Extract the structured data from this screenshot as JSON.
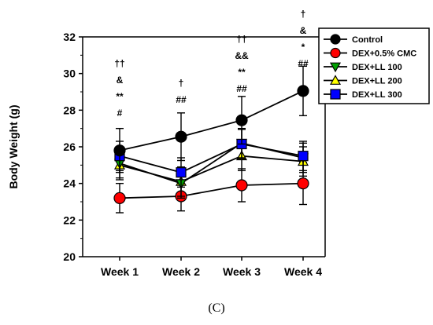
{
  "panel_label": "(C)",
  "chart_data": {
    "type": "line",
    "title": "",
    "xlabel": "",
    "ylabel": "Body Weight (g)",
    "categories": [
      "Week 1",
      "Week 2",
      "Week 3",
      "Week 4"
    ],
    "ylim": [
      20,
      32
    ],
    "yticks": [
      20,
      22,
      24,
      26,
      28,
      30,
      32
    ],
    "grid": false,
    "legend_position": "top-right",
    "series": [
      {
        "name": "Control",
        "color": "#000000",
        "marker": "circle",
        "values": [
          25.8,
          26.55,
          27.45,
          29.05
        ],
        "errors": [
          1.2,
          1.3,
          1.3,
          1.35
        ]
      },
      {
        "name": "DEX+0.5% CMC",
        "color": "#ff0000",
        "marker": "circle",
        "values": [
          23.2,
          23.3,
          23.9,
          24.0
        ],
        "errors": [
          0.8,
          0.8,
          0.9,
          1.15
        ]
      },
      {
        "name": "DEX+LL 100",
        "color": "#00a000",
        "marker": "triangle-down",
        "values": [
          25.1,
          24.0,
          26.2,
          25.4
        ],
        "errors": [
          0.8,
          0.8,
          0.8,
          0.8
        ]
      },
      {
        "name": "DEX+LL 200",
        "color": "#ffff00",
        "marker": "triangle-up",
        "values": [
          25.0,
          24.1,
          25.5,
          25.2
        ],
        "errors": [
          0.8,
          0.8,
          0.8,
          0.8
        ]
      },
      {
        "name": "DEX+LL 300",
        "color": "#0000ff",
        "marker": "square",
        "values": [
          25.5,
          24.6,
          26.15,
          25.5
        ],
        "errors": [
          0.8,
          0.8,
          0.8,
          0.8
        ]
      }
    ],
    "annotations": [
      {
        "category": "Week 1",
        "lines": [
          "††",
          "&",
          "**",
          "#"
        ]
      },
      {
        "category": "Week 2",
        "lines": [
          "†",
          "##"
        ]
      },
      {
        "category": "Week 3",
        "lines": [
          "††",
          "&&",
          "**",
          "##"
        ]
      },
      {
        "category": "Week 4",
        "lines": [
          "†",
          "&",
          "*",
          "##"
        ]
      }
    ]
  }
}
